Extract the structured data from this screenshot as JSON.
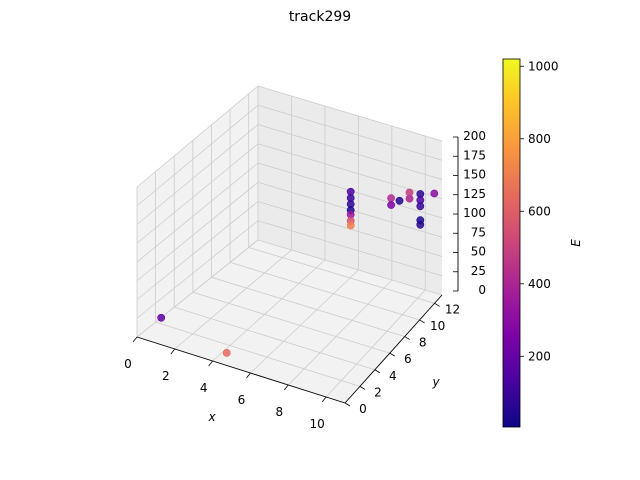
{
  "chart_data": {
    "type": "scatter",
    "projection": "3d",
    "title": "track299",
    "xlabel": "x",
    "ylabel": "y",
    "zlabel": "",
    "xlim": [
      0,
      11
    ],
    "ylim": [
      0,
      13
    ],
    "zlim": [
      0,
      200
    ],
    "xticks": [
      "0",
      "2",
      "4",
      "6",
      "8",
      "10"
    ],
    "yticks": [
      "0",
      "2",
      "4",
      "6",
      "8",
      "10",
      "12"
    ],
    "zticks": [
      "0",
      "25",
      "50",
      "75",
      "100",
      "125",
      "150",
      "175",
      "200"
    ],
    "grid": true,
    "colormap": "plasma",
    "colorbar": {
      "label": "E",
      "min": 5,
      "max": 1020,
      "ticks": [
        "200",
        "400",
        "600",
        "800",
        "1000"
      ]
    },
    "points": [
      {
        "x": 7.0,
        "y": 10.0,
        "z": 116,
        "E": 40
      },
      {
        "x": 7.0,
        "y": 10.0,
        "z": 124,
        "E": 60
      },
      {
        "x": 7.0,
        "y": 10.0,
        "z": 132,
        "E": 90
      },
      {
        "x": 7.0,
        "y": 10.0,
        "z": 140,
        "E": 140
      },
      {
        "x": 7.0,
        "y": 10.0,
        "z": 110,
        "E": 340
      },
      {
        "x": 7.0,
        "y": 10.0,
        "z": 102,
        "E": 560
      },
      {
        "x": 7.0,
        "y": 10.0,
        "z": 96,
        "E": 700
      },
      {
        "x": 8.8,
        "y": 11.2,
        "z": 131,
        "E": 420
      },
      {
        "x": 8.8,
        "y": 11.2,
        "z": 122,
        "E": 260
      },
      {
        "x": 9.2,
        "y": 11.4,
        "z": 128,
        "E": 50
      },
      {
        "x": 9.7,
        "y": 11.6,
        "z": 132,
        "E": 400
      },
      {
        "x": 9.7,
        "y": 11.6,
        "z": 140,
        "E": 480
      },
      {
        "x": 10.2,
        "y": 11.9,
        "z": 138,
        "E": 70
      },
      {
        "x": 10.2,
        "y": 11.9,
        "z": 130,
        "E": 130
      },
      {
        "x": 10.2,
        "y": 11.9,
        "z": 122,
        "E": 90
      },
      {
        "x": 10.2,
        "y": 11.9,
        "z": 104,
        "E": 40
      },
      {
        "x": 10.2,
        "y": 11.9,
        "z": 98,
        "E": 60
      },
      {
        "x": 10.9,
        "y": 12.2,
        "z": 140,
        "E": 300
      },
      {
        "x": 0.3,
        "y": 2.0,
        "z": 8,
        "E": 180
      },
      {
        "x": 4.2,
        "y": 1.2,
        "z": 0,
        "E": 640
      }
    ]
  }
}
